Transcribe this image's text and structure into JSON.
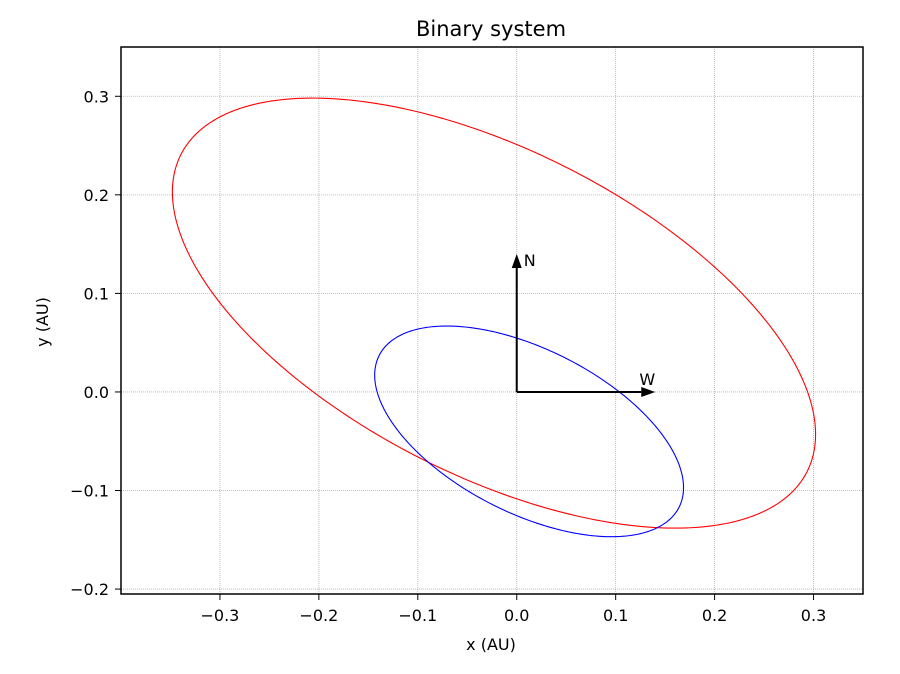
{
  "chart_data": {
    "type": "line",
    "title": "Binary system",
    "xlabel": "x (AU)",
    "ylabel": "y (AU)",
    "xlim": [
      -0.4,
      0.35
    ],
    "ylim": [
      -0.205,
      0.35
    ],
    "xticks": [
      -0.3,
      -0.2,
      -0.1,
      0.0,
      0.1,
      0.2,
      0.3
    ],
    "yticks": [
      -0.2,
      -0.1,
      0.0,
      0.1,
      0.2,
      0.3
    ],
    "xtick_labels": [
      "−0.3",
      "−0.2",
      "−0.1",
      "0.0",
      "0.1",
      "0.2",
      "0.3"
    ],
    "ytick_labels": [
      "−0.2",
      "−0.1",
      "0.0",
      "0.1",
      "0.2",
      "0.3"
    ],
    "grid": true,
    "series": [
      {
        "color": "#ff0000",
        "shape": "ellipse",
        "center": [
          -0.023,
          0.08
        ],
        "semi_major": 0.355,
        "semi_minor": 0.165,
        "rotation_deg": -27,
        "points": [
          [
            -0.335,
            0.165
          ],
          [
            -0.155,
            0.285
          ],
          [
            0.289,
            0.0
          ],
          [
            0.11,
            -0.127
          ],
          [
            -0.09,
            -0.085
          ]
        ]
      },
      {
        "color": "#0000ff",
        "shape": "ellipse",
        "center": [
          0.0125,
          -0.04
        ],
        "semi_major": 0.17,
        "semi_minor": 0.083,
        "rotation_deg": -27,
        "points": [
          [
            -0.145,
            0.0
          ],
          [
            -0.055,
            0.063
          ],
          [
            0.168,
            -0.085
          ],
          [
            0.078,
            -0.143
          ]
        ]
      }
    ],
    "annotations": [
      {
        "label": "N",
        "from": [
          0.0,
          0.0
        ],
        "to": [
          0.0,
          0.14
        ],
        "color": "#000000"
      },
      {
        "label": "W",
        "from": [
          0.0,
          0.0
        ],
        "to": [
          0.14,
          0.0
        ],
        "color": "#000000"
      }
    ]
  }
}
